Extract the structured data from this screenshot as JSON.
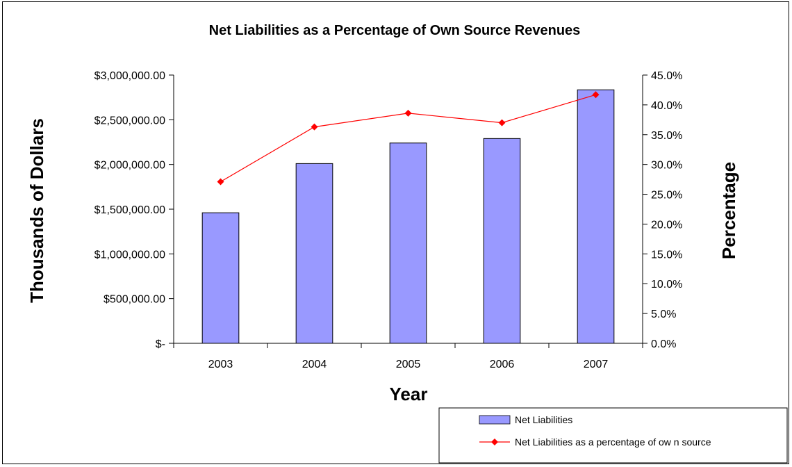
{
  "chart_data": {
    "type": "bar",
    "title": "Net Liabilities as a Percentage of Own Source Revenues",
    "xlabel": "Year",
    "ylabel": "Thousands of Dollars",
    "y2label": "Percentage",
    "categories": [
      "2003",
      "2004",
      "2005",
      "2006",
      "2007"
    ],
    "ylim": [
      0,
      3000000
    ],
    "y2lim": [
      0,
      45
    ],
    "yticks": [
      0,
      500000,
      1000000,
      1500000,
      2000000,
      2500000,
      3000000
    ],
    "ytick_labels": [
      "$-",
      "$500,000.00",
      "$1,000,000.00",
      "$1,500,000.00",
      "$2,000,000.00",
      "$2,500,000.00",
      "$3,000,000.00"
    ],
    "y2ticks": [
      0,
      5,
      10,
      15,
      20,
      25,
      30,
      35,
      40,
      45
    ],
    "y2tick_labels": [
      "0.0%",
      "5.0%",
      "10.0%",
      "15.0%",
      "20.0%",
      "25.0%",
      "30.0%",
      "35.0%",
      "40.0%",
      "45.0%"
    ],
    "grid": false,
    "legend_position": "bottom-right",
    "series": [
      {
        "name": "Net Liabilities",
        "type": "bar",
        "axis": "left",
        "color": "#9999ff",
        "values": [
          1460000,
          2010000,
          2240000,
          2290000,
          2835000
        ]
      },
      {
        "name": "Net Liabilities as a percentage of ow n source",
        "type": "line",
        "axis": "right",
        "color": "#ff0000",
        "values": [
          27.1,
          36.3,
          38.6,
          37.0,
          41.7
        ]
      }
    ]
  }
}
